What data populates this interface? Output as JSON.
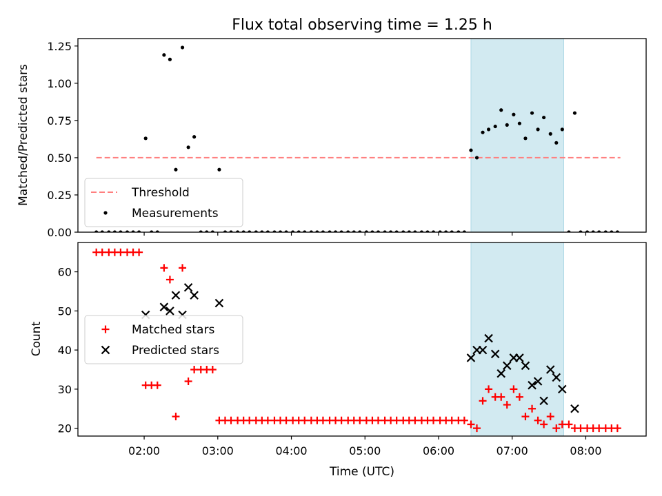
{
  "chart_data": [
    {
      "type": "scatter",
      "title": "Flux total observing time = 1.25 h",
      "xlabel": "",
      "ylabel": "Matched/Predicted stars",
      "xlim_hours": [
        1.1,
        8.82
      ],
      "ylim": [
        0,
        1.3
      ],
      "yticks": [
        0.0,
        0.25,
        0.5,
        0.75,
        1.0,
        1.25
      ],
      "ytick_labels": [
        "0.00",
        "0.25",
        "0.50",
        "0.75",
        "1.00",
        "1.25"
      ],
      "xticks_hours": [
        2,
        3,
        4,
        5,
        6,
        7,
        8
      ],
      "xtick_labels": [
        "",
        "",
        "",
        "",
        "",
        "",
        ""
      ],
      "shaded_span_hours": [
        6.44,
        7.7
      ],
      "shade_color": "#add8e6",
      "threshold": {
        "name": "Threshold",
        "value": 0.5,
        "x_range_hours": [
          1.35,
          8.47
        ],
        "color": "#ff7f7f"
      },
      "legend": {
        "placement": "lower-left",
        "entries": [
          "Threshold",
          "Measurements"
        ]
      },
      "series": [
        {
          "name": "Measurements",
          "color": "#000000",
          "marker": "point",
          "x_hours": [
            1.35,
            1.43,
            1.52,
            1.6,
            1.68,
            1.77,
            1.85,
            1.93,
            2.02,
            2.1,
            2.18,
            2.27,
            2.35,
            2.43,
            2.52,
            2.6,
            2.68,
            2.77,
            2.85,
            2.93,
            3.02,
            3.1,
            3.18,
            3.27,
            3.35,
            3.43,
            3.52,
            3.6,
            3.68,
            3.77,
            3.85,
            3.93,
            4.02,
            4.1,
            4.18,
            4.27,
            4.35,
            4.43,
            4.52,
            4.6,
            4.68,
            4.77,
            4.85,
            4.93,
            5.02,
            5.1,
            5.18,
            5.27,
            5.35,
            5.43,
            5.52,
            5.6,
            5.68,
            5.77,
            5.85,
            5.93,
            6.02,
            6.1,
            6.18,
            6.27,
            6.35,
            6.44,
            6.52,
            6.6,
            6.68,
            6.77,
            6.85,
            6.93,
            7.02,
            7.1,
            7.18,
            7.27,
            7.35,
            7.43,
            7.52,
            7.6,
            7.68,
            7.77,
            7.85,
            7.93,
            8.02,
            8.1,
            8.18,
            8.27,
            8.35,
            8.43
          ],
          "y": [
            0,
            0,
            0,
            0,
            0,
            0,
            0,
            0,
            0.63,
            0,
            0,
            1.19,
            1.16,
            0.42,
            1.24,
            0.57,
            0.64,
            0,
            0,
            0,
            0.42,
            0,
            0,
            0,
            0,
            0,
            0,
            0,
            0,
            0,
            0,
            0,
            0,
            0,
            0,
            0,
            0,
            0,
            0,
            0,
            0,
            0,
            0,
            0,
            0,
            0,
            0,
            0,
            0,
            0,
            0,
            0,
            0,
            0,
            0,
            0,
            0,
            0,
            0,
            0,
            0,
            0.55,
            0.5,
            0.67,
            0.69,
            0.71,
            0.82,
            0.72,
            0.79,
            0.73,
            0.63,
            0.8,
            0.69,
            0.77,
            0.66,
            0.6,
            0.69,
            0,
            0.8,
            0,
            0,
            0,
            0,
            0,
            0,
            0
          ]
        }
      ]
    },
    {
      "type": "scatter",
      "title": "",
      "xlabel": "Time (UTC)",
      "ylabel": "Count",
      "xlim_hours": [
        1.1,
        8.82
      ],
      "ylim": [
        18,
        67.5
      ],
      "yticks": [
        20,
        30,
        40,
        50,
        60
      ],
      "ytick_labels": [
        "20",
        "30",
        "40",
        "50",
        "60"
      ],
      "xticks_hours": [
        2,
        3,
        4,
        5,
        6,
        7,
        8
      ],
      "xtick_labels": [
        "02:00",
        "03:00",
        "04:00",
        "05:00",
        "06:00",
        "07:00",
        "08:00"
      ],
      "shaded_span_hours": [
        6.44,
        7.7
      ],
      "shade_color": "#add8e6",
      "legend": {
        "placement": "center-left",
        "entries": [
          "Matched stars",
          "Predicted stars"
        ]
      },
      "series": [
        {
          "name": "Matched stars",
          "color": "#ff0000",
          "marker": "plus",
          "x_hours": [
            1.35,
            1.43,
            1.52,
            1.6,
            1.68,
            1.77,
            1.85,
            1.93,
            2.02,
            2.1,
            2.18,
            2.27,
            2.35,
            2.43,
            2.52,
            2.6,
            2.68,
            2.77,
            2.85,
            2.93,
            3.02,
            3.1,
            3.18,
            3.27,
            3.35,
            3.43,
            3.52,
            3.6,
            3.68,
            3.77,
            3.85,
            3.93,
            4.02,
            4.1,
            4.18,
            4.27,
            4.35,
            4.43,
            4.52,
            4.6,
            4.68,
            4.77,
            4.85,
            4.93,
            5.02,
            5.1,
            5.18,
            5.27,
            5.35,
            5.43,
            5.52,
            5.6,
            5.68,
            5.77,
            5.85,
            5.93,
            6.02,
            6.1,
            6.18,
            6.27,
            6.35,
            6.44,
            6.52,
            6.6,
            6.68,
            6.77,
            6.85,
            6.93,
            7.02,
            7.1,
            7.18,
            7.27,
            7.35,
            7.43,
            7.52,
            7.6,
            7.68,
            7.77,
            7.85,
            7.93,
            8.02,
            8.1,
            8.18,
            8.27,
            8.35,
            8.43
          ],
          "y": [
            65,
            65,
            65,
            65,
            65,
            65,
            65,
            65,
            31,
            31,
            31,
            61,
            58,
            23,
            61,
            32,
            35,
            35,
            35,
            35,
            22,
            22,
            22,
            22,
            22,
            22,
            22,
            22,
            22,
            22,
            22,
            22,
            22,
            22,
            22,
            22,
            22,
            22,
            22,
            22,
            22,
            22,
            22,
            22,
            22,
            22,
            22,
            22,
            22,
            22,
            22,
            22,
            22,
            22,
            22,
            22,
            22,
            22,
            22,
            22,
            22,
            21,
            20,
            27,
            30,
            28,
            28,
            26,
            30,
            28,
            23,
            25,
            22,
            21,
            23,
            20,
            21,
            21,
            20,
            20,
            20,
            20,
            20,
            20,
            20,
            20
          ]
        },
        {
          "name": "Predicted stars",
          "color": "#000000",
          "marker": "x",
          "x_hours": [
            2.02,
            2.27,
            2.35,
            2.43,
            2.52,
            2.6,
            2.68,
            3.02,
            6.44,
            6.52,
            6.6,
            6.68,
            6.77,
            6.85,
            6.93,
            7.02,
            7.1,
            7.18,
            7.27,
            7.35,
            7.43,
            7.52,
            7.6,
            7.68,
            7.85
          ],
          "y": [
            49,
            51,
            50,
            54,
            49,
            56,
            54,
            52,
            38,
            40,
            40,
            43,
            39,
            34,
            36,
            38,
            38,
            36,
            31,
            32,
            27,
            35,
            33,
            30,
            25
          ]
        }
      ]
    }
  ]
}
